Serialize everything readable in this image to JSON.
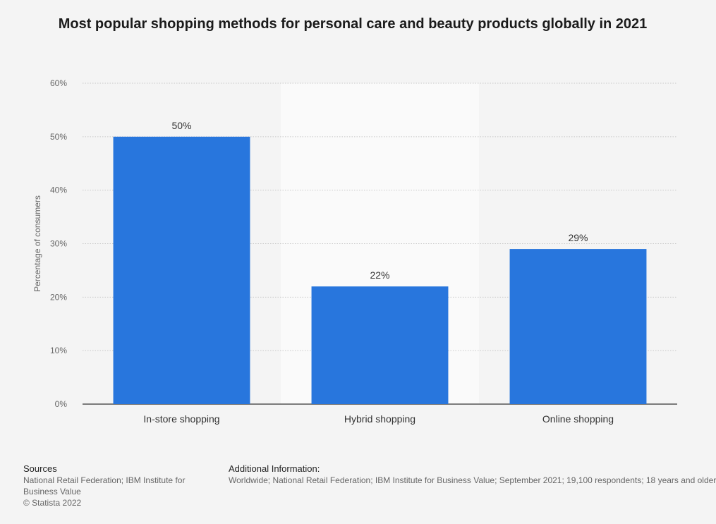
{
  "chart_data": {
    "type": "bar",
    "title": "Most popular shopping methods for personal care and beauty products globally in 2021",
    "categories": [
      "In-store shopping",
      "Hybrid shopping",
      "Online shopping"
    ],
    "values": [
      50,
      22,
      29
    ],
    "value_labels": [
      "50%",
      "22%",
      "29%"
    ],
    "xlabel": "",
    "ylabel": "Percentage of consumers",
    "ylim": [
      0,
      60
    ],
    "yticks": [
      0,
      10,
      20,
      30,
      40,
      50,
      60
    ],
    "ytick_labels": [
      "0%",
      "10%",
      "20%",
      "30%",
      "40%",
      "50%",
      "60%"
    ],
    "grid": true,
    "highlighted_category_index": 1,
    "bar_color": "#2876dd"
  },
  "footer": {
    "sources_heading": "Sources",
    "sources_line1": "National Retail Federation; IBM Institute for Business Value",
    "copyright": "© Statista 2022",
    "additional_heading": "Additional Information:",
    "additional_text": "Worldwide; National Retail Federation; IBM Institute for Business Value; September 2021; 19,100 respondents; 18 years and older"
  }
}
